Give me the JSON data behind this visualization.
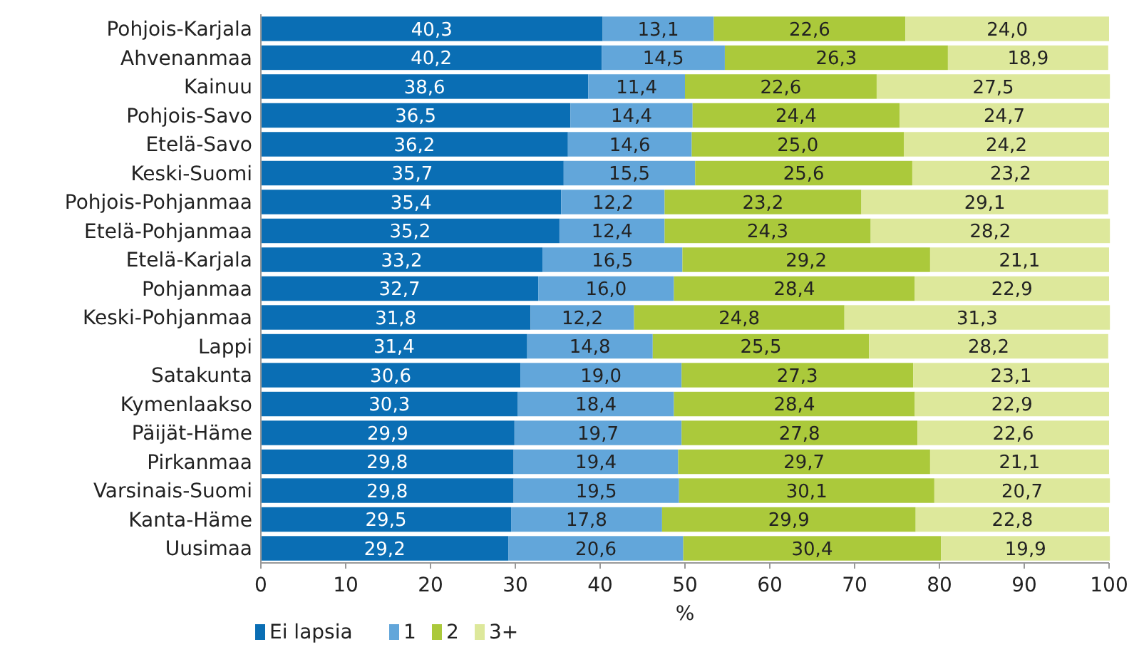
{
  "chart_data": {
    "type": "bar",
    "orientation": "horizontal",
    "stacked": true,
    "legend": "bottom left",
    "xlabel": "%",
    "xlim": [
      0,
      100
    ],
    "xticks": [
      0,
      10,
      20,
      30,
      40,
      50,
      60,
      70,
      80,
      90,
      100
    ],
    "categories": [
      "Pohjois-Karjala",
      "Ahvenanmaa",
      "Kainuu",
      "Pohjois-Savo",
      "Etelä-Savo",
      "Keski-Suomi",
      "Pohjois-Pohjanmaa",
      "Etelä-Pohjanmaa",
      "Etelä-Karjala",
      "Pohjanmaa",
      "Keski-Pohjanmaa",
      "Lappi",
      "Satakunta",
      "Kymenlaakso",
      "Päijät-Häme",
      "Pirkanmaa",
      "Varsinais-Suomi",
      "Kanta-Häme",
      "Uusimaa"
    ],
    "series": [
      {
        "name": "Ei lapsia",
        "color": "#0a6eb4",
        "values": [
          40.3,
          40.2,
          38.6,
          36.5,
          36.2,
          35.7,
          35.4,
          35.2,
          33.2,
          32.7,
          31.8,
          31.4,
          30.6,
          30.3,
          29.9,
          29.8,
          29.8,
          29.5,
          29.2
        ],
        "value_labels": [
          "40,3",
          "40,2",
          "38,6",
          "36,5",
          "36,2",
          "35,7",
          "35,4",
          "35,2",
          "33,2",
          "32,7",
          "31,8",
          "31,4",
          "30,6",
          "30,3",
          "29,9",
          "29,8",
          "29,8",
          "29,5",
          "29,2"
        ]
      },
      {
        "name": "1",
        "color": "#62a6da",
        "values": [
          13.1,
          14.5,
          11.4,
          14.4,
          14.6,
          15.5,
          12.2,
          12.4,
          16.5,
          16.0,
          12.2,
          14.8,
          19.0,
          18.4,
          19.7,
          19.4,
          19.5,
          17.8,
          20.6
        ],
        "value_labels": [
          "13,1",
          "14,5",
          "11,4",
          "14,4",
          "14,6",
          "15,5",
          "12,2",
          "12,4",
          "16,5",
          "16,0",
          "12,2",
          "14,8",
          "19,0",
          "18,4",
          "19,7",
          "19,4",
          "19,5",
          "17,8",
          "20,6"
        ]
      },
      {
        "name": "2",
        "color": "#abc93b",
        "values": [
          22.6,
          26.3,
          22.6,
          24.4,
          25.0,
          25.6,
          23.2,
          24.3,
          29.2,
          28.4,
          24.8,
          25.5,
          27.3,
          28.4,
          27.8,
          29.7,
          30.1,
          29.9,
          30.4
        ],
        "value_labels": [
          "22,6",
          "26,3",
          "22,6",
          "24,4",
          "25,0",
          "25,6",
          "23,2",
          "24,3",
          "29,2",
          "28,4",
          "24,8",
          "25,5",
          "27,3",
          "28,4",
          "27,8",
          "29,7",
          "30,1",
          "29,9",
          "30,4"
        ]
      },
      {
        "name": "3+",
        "color": "#dde89b",
        "values": [
          24.0,
          18.9,
          27.5,
          24.7,
          24.2,
          23.2,
          29.1,
          28.2,
          21.1,
          22.9,
          31.3,
          28.2,
          23.1,
          22.9,
          22.6,
          21.1,
          20.7,
          22.8,
          19.9
        ],
        "value_labels": [
          "24,0",
          "18,9",
          "27,5",
          "24,7",
          "24,2",
          "23,2",
          "29,1",
          "28,2",
          "21,1",
          "22,9",
          "31,3",
          "28,2",
          "23,1",
          "22,9",
          "22,6",
          "21,1",
          "20,7",
          "22,8",
          "19,9"
        ]
      }
    ]
  }
}
